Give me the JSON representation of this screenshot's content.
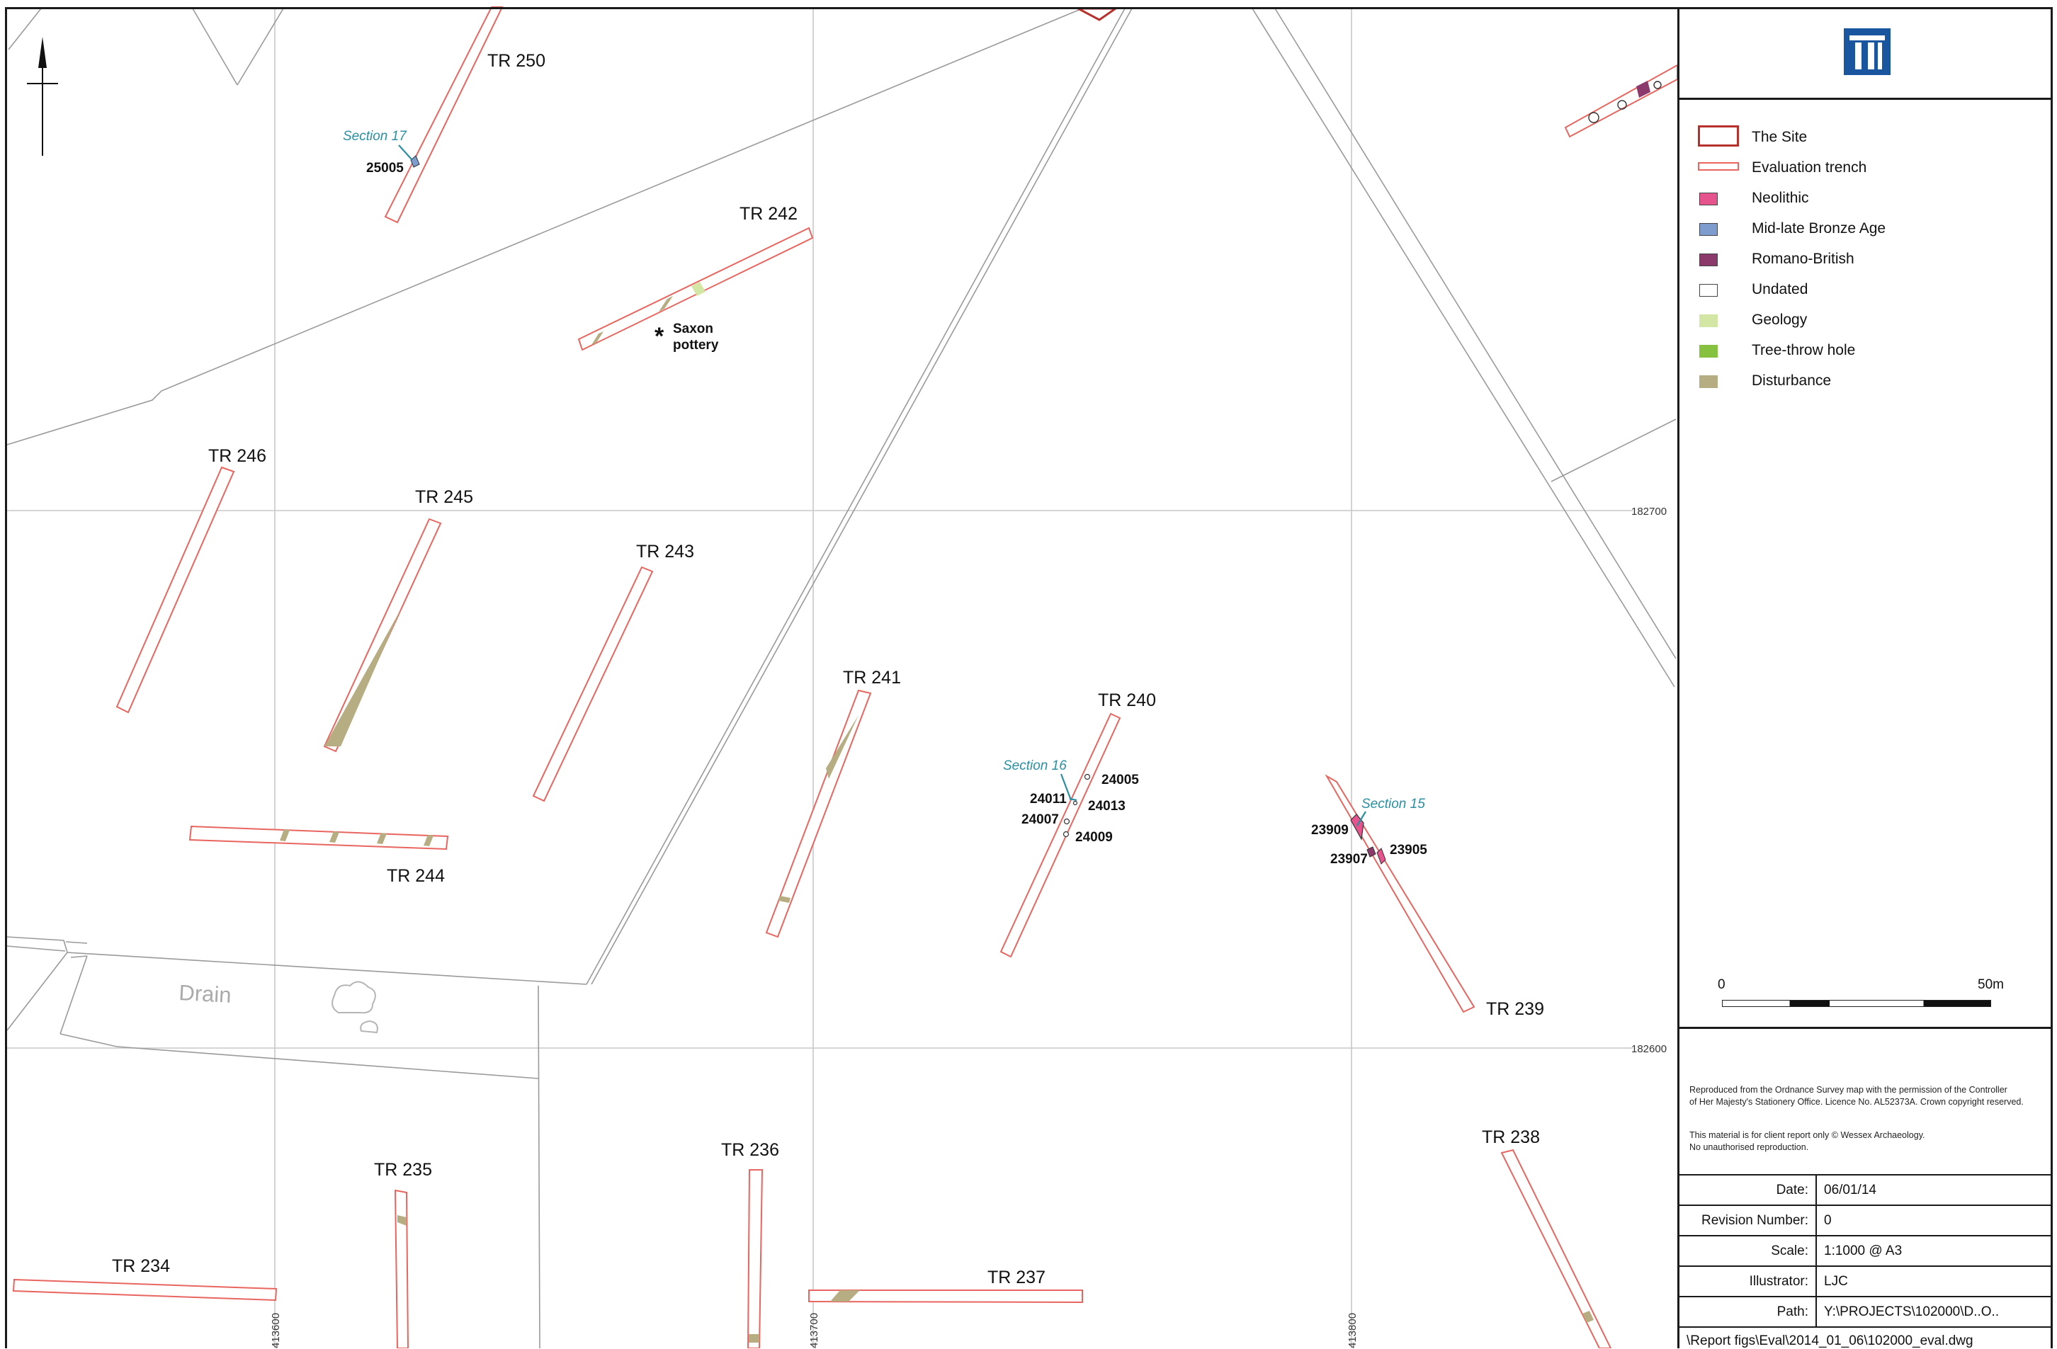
{
  "map": {
    "trenches": [
      "TR 250",
      "TR 242",
      "TR 246",
      "TR 245",
      "TR 243",
      "TR 244",
      "TR 241",
      "TR 240",
      "TR 239",
      "TR 238",
      "TR 235",
      "TR 236",
      "TR 237",
      "TR 234"
    ],
    "features": [
      "25005",
      "24005",
      "24011",
      "24013",
      "24007",
      "24009",
      "23909",
      "23905",
      "23907"
    ],
    "sections": [
      "Section 17",
      "Section 16",
      "Section 15"
    ],
    "finds_label_line1": "Saxon",
    "finds_label_line2": "pottery",
    "finds_marker": "*",
    "place_label": "Drain",
    "grid": {
      "northings": [
        "182700",
        "182600"
      ],
      "eastings": [
        "413600",
        "413700",
        "413800"
      ]
    },
    "colors": {
      "site_boundary": "#b8302c",
      "trench": "#e8665f",
      "neolithic": "#e7538c",
      "bronze_age": "#7f9ccf",
      "romano_british": "#8b3a6b",
      "undated": "#ffffff",
      "geology": "#d4e6a3",
      "tree_throw": "#86c23f",
      "disturbance": "#b6ad82",
      "section_label": "#2b8fa3",
      "grid": "#c8c8c8",
      "basemap": "#9a9a9a"
    }
  },
  "legend": {
    "items": [
      {
        "label": "The Site",
        "swatch": "site"
      },
      {
        "label": "Evaluation trench",
        "swatch": "trench"
      },
      {
        "label": "Neolithic",
        "color": "#e7538c"
      },
      {
        "label": "Mid-late Bronze Age",
        "color": "#7f9ccf"
      },
      {
        "label": "Romano-British",
        "color": "#8b3a6b"
      },
      {
        "label": "Undated",
        "color": "#ffffff"
      },
      {
        "label": "Geology",
        "color": "#d4e6a3"
      },
      {
        "label": "Tree-throw hole",
        "color": "#86c23f"
      },
      {
        "label": "Disturbance",
        "color": "#b6ad82"
      }
    ]
  },
  "scale": {
    "min_label": "0",
    "max_label": "50m"
  },
  "copyright": {
    "line1": "Reproduced from the Ordnance Survey map with the permission of the Controller",
    "line2": "of Her Majesty's Stationery Office.  Licence No. AL52373A. Crown copyright reserved.",
    "client_line1": "This material is for client report only © Wessex Archaeology.",
    "client_line2": "No unauthorised reproduction."
  },
  "info": {
    "date_label": "Date:",
    "date_value": "06/01/14",
    "revision_label": "Revision Number:",
    "revision_value": "0",
    "scale_label": "Scale:",
    "scale_value": "1:1000 @ A3",
    "illustrator_label": "Illustrator:",
    "illustrator_value": "LJC",
    "path_label": "Path:",
    "path_value": "Y:\\PROJECTS\\102000\\D..O..",
    "path_continuation": "\\Report figs\\Eval\\2014_01_06\\102000_eval.dwg"
  }
}
